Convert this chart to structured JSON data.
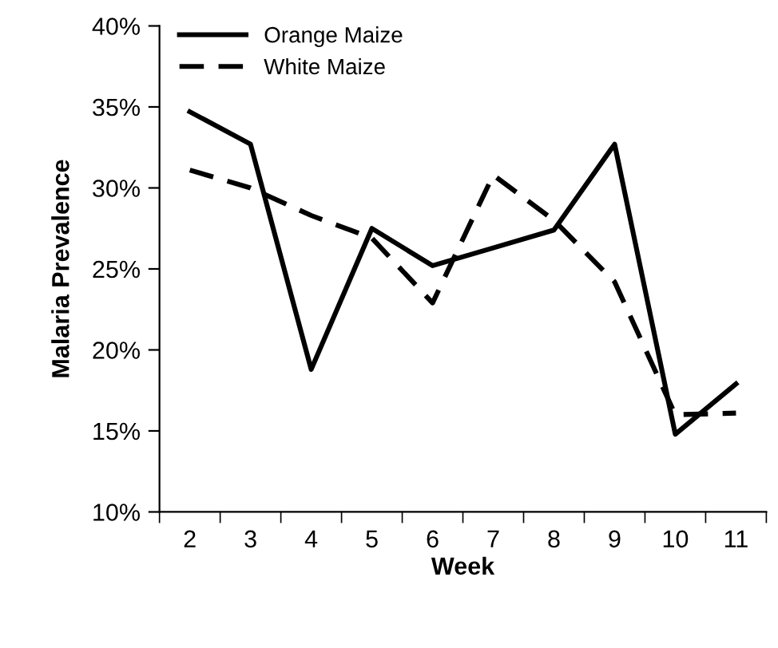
{
  "chart_data": {
    "type": "line",
    "xlabel": "Week",
    "ylabel": "Malaria Prevalence",
    "categories": [
      "2",
      "3",
      "4",
      "5",
      "6",
      "7",
      "8",
      "9",
      "10",
      "11"
    ],
    "series": [
      {
        "name": "Orange Maize",
        "color": "#000000",
        "line_style": "solid",
        "values": [
          34.7,
          32.7,
          18.8,
          27.5,
          25.2,
          26.3,
          27.4,
          32.7,
          14.8,
          17.9
        ]
      },
      {
        "name": "White Maize",
        "color": "#000000",
        "line_style": "dashed",
        "values": [
          31.1,
          30.0,
          28.3,
          26.9,
          22.9,
          30.8,
          28.0,
          24.2,
          16.0,
          16.1
        ]
      }
    ],
    "ylim": [
      10,
      40
    ],
    "yticks": [
      {
        "value": 10,
        "label": "10%"
      },
      {
        "value": 15,
        "label": "15%"
      },
      {
        "value": 20,
        "label": "20%"
      },
      {
        "value": 25,
        "label": "25%"
      },
      {
        "value": 30,
        "label": "30%"
      },
      {
        "value": 35,
        "label": "35%"
      },
      {
        "value": 40,
        "label": "40%"
      }
    ],
    "legend": "top left",
    "grid": false,
    "marker": "none"
  }
}
